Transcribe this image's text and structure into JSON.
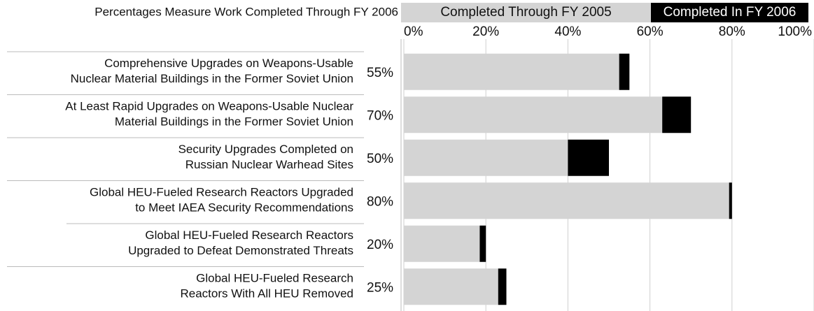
{
  "chart_data": {
    "type": "stacked-barh",
    "title": "Percentages Measure Work Completed Through FY 2006",
    "categories": [
      [
        "Comprehensive Upgrades on Weapons-Usable",
        "Nuclear Material Buildings in the Former Soviet Union"
      ],
      [
        "At Least Rapid Upgrades on Weapons-Usable Nuclear",
        "Material Buildings in the Former Soviet Union"
      ],
      [
        "Security Upgrades Completed on",
        "Russian Nuclear Warhead Sites"
      ],
      [
        "Global HEU-Fueled Research Reactors Upgraded",
        "to Meet IAEA Security Recommendations"
      ],
      [
        "Global HEU-Fueled Research Reactors",
        "Upgraded to Defeat Demonstrated Threats"
      ],
      [
        "Global HEU-Fueled Research",
        "Reactors With All HEU Removed"
      ]
    ],
    "total_labels": [
      "55%",
      "70%",
      "50%",
      "80%",
      "20%",
      "25%"
    ],
    "series": [
      {
        "name": "Completed Through FY 2005",
        "color": "#d4d4d4",
        "values": [
          52.5,
          63,
          40,
          79.3,
          18.5,
          23
        ]
      },
      {
        "name": "Completed In FY 2006",
        "color": "#000000",
        "values": [
          2.5,
          7,
          10,
          0.7,
          1.5,
          2
        ]
      }
    ],
    "xlim": [
      0,
      100
    ],
    "xticks": [
      {
        "value": 0,
        "label": "0%"
      },
      {
        "value": 20,
        "label": "20%"
      },
      {
        "value": 40,
        "label": "40%"
      },
      {
        "value": 60,
        "label": "60%"
      },
      {
        "value": 80,
        "label": "80%"
      },
      {
        "value": 100,
        "label": "100%"
      }
    ],
    "grid": true
  }
}
